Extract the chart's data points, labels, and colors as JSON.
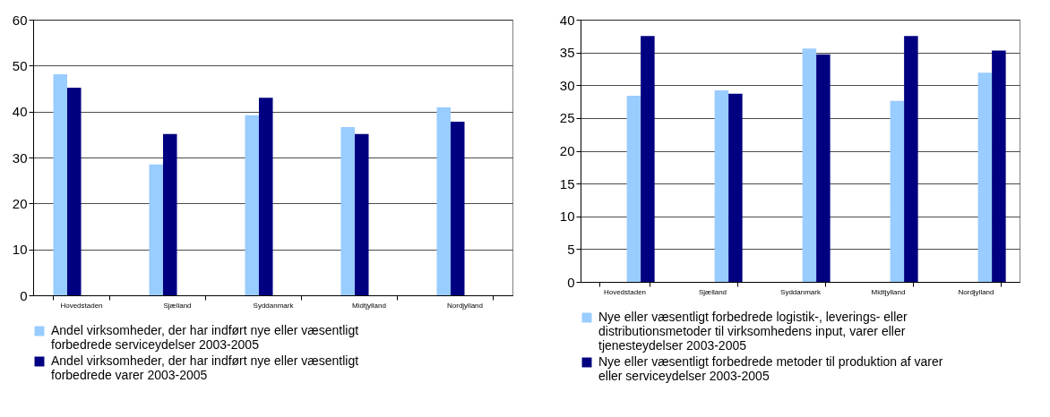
{
  "chart_data": [
    {
      "type": "bar",
      "categories": [
        "Hovedstaden",
        "Sjælland",
        "Syddanmark",
        "Midtjylland",
        "Nordjylland"
      ],
      "ylim": [
        0,
        60
      ],
      "yticks": [
        0,
        10,
        20,
        30,
        40,
        50,
        60
      ],
      "grid": "y",
      "legend": "bottom",
      "series": [
        {
          "name": "Andel virksomheder, der har indført nye eller væsentligt forbedrede serviceydelser 2003-2005",
          "color": "#99ccff",
          "values": [
            48.1,
            28.5,
            39.2,
            36.6,
            40.9
          ]
        },
        {
          "name": "Andel virksomheder, der har indført nye eller væsentligt forbedrede varer 2003-2005",
          "color": "#000080",
          "values": [
            45.2,
            35.1,
            43.0,
            35.1,
            37.8
          ]
        }
      ]
    },
    {
      "type": "bar",
      "categories": [
        "Hovedstaden",
        "Sjælland",
        "Syddanmark",
        "Midtjylland",
        "Nordjylland"
      ],
      "ylim": [
        0,
        40
      ],
      "yticks": [
        0,
        5,
        10,
        15,
        20,
        25,
        30,
        35,
        40
      ],
      "grid": "y",
      "legend": "bottom",
      "series": [
        {
          "name": "Nye eller væsentligt forbedrede logistik-, leverings- eller distributionsmetoder til virksomhedens input, varer eller tjenesteydelser 2003-2005",
          "color": "#99ccff",
          "values": [
            28.4,
            29.2,
            35.6,
            27.6,
            31.9
          ]
        },
        {
          "name": "Nye eller væsentligt forbedrede metoder til produktion af varer eller serviceydelser 2003-2005",
          "color": "#000080",
          "values": [
            37.5,
            28.7,
            34.7,
            37.5,
            35.3
          ]
        }
      ]
    }
  ]
}
